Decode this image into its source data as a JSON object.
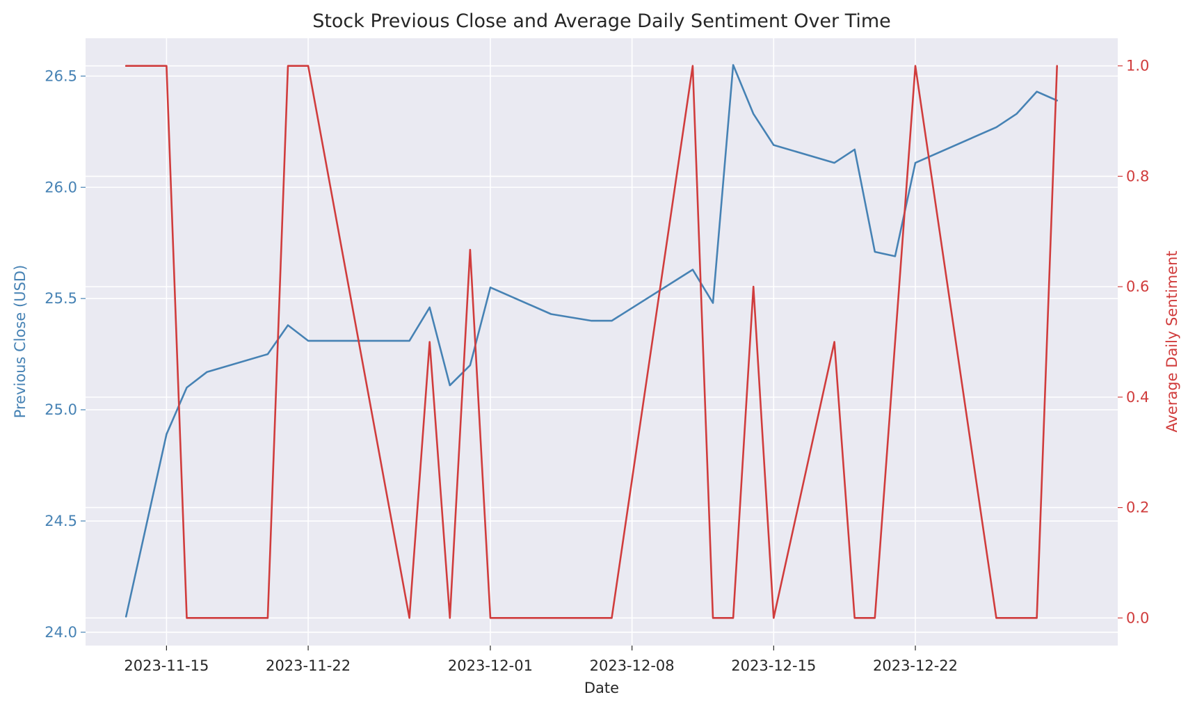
{
  "chart_data": {
    "type": "line",
    "title": "Stock Previous Close and Average Daily Sentiment Over Time",
    "xlabel": "Date",
    "ylabel_left": "Previous Close (USD)",
    "ylabel_right": "Average Daily Sentiment",
    "x_ticks": [
      "2023-11-15",
      "2023-11-22",
      "2023-12-01",
      "2023-12-08",
      "2023-12-15",
      "2023-12-22"
    ],
    "xlim": [
      "2023-11-11",
      "2024-01-01"
    ],
    "y_left_ticks": [
      "24.0",
      "24.5",
      "25.0",
      "25.5",
      "26.0",
      "26.5"
    ],
    "ylim_left": [
      23.94,
      26.67
    ],
    "y_right_ticks": [
      "0.0",
      "0.2",
      "0.4",
      "0.6",
      "0.8",
      "1.0"
    ],
    "ylim_right": [
      -0.05,
      1.05
    ],
    "grid": true,
    "colors": {
      "close": "#4682b4",
      "sentiment": "#d03c3c",
      "background": "#eaeaf2"
    },
    "series": [
      {
        "axis": "left",
        "x": [
          "2023-11-13",
          "2023-11-15",
          "2023-11-16",
          "2023-11-17",
          "2023-11-20",
          "2023-11-21",
          "2023-11-22",
          "2023-11-27",
          "2023-11-28",
          "2023-11-29",
          "2023-11-30",
          "2023-12-01",
          "2023-12-04",
          "2023-12-06",
          "2023-12-07",
          "2023-12-11",
          "2023-12-12",
          "2023-12-13",
          "2023-12-14",
          "2023-12-15",
          "2023-12-18",
          "2023-12-19",
          "2023-12-20",
          "2023-12-21",
          "2023-12-22",
          "2023-12-26",
          "2023-12-27",
          "2023-12-28",
          "2023-12-29"
        ],
        "values": [
          24.07,
          24.89,
          25.1,
          25.17,
          25.25,
          25.38,
          25.31,
          25.31,
          25.46,
          25.11,
          25.2,
          25.55,
          25.43,
          25.4,
          25.4,
          25.63,
          25.48,
          26.55,
          26.33,
          26.19,
          26.11,
          26.17,
          25.71,
          25.69,
          26.11,
          26.27,
          26.33,
          26.43,
          26.39
        ]
      },
      {
        "axis": "right",
        "x": [
          "2023-11-13",
          "2023-11-15",
          "2023-11-16",
          "2023-11-20",
          "2023-11-21",
          "2023-11-22",
          "2023-11-27",
          "2023-11-28",
          "2023-11-29",
          "2023-11-30",
          "2023-12-01",
          "2023-12-07",
          "2023-12-11",
          "2023-12-12",
          "2023-12-13",
          "2023-12-14",
          "2023-12-15",
          "2023-12-18",
          "2023-12-19",
          "2023-12-20",
          "2023-12-22",
          "2023-12-26",
          "2023-12-28",
          "2023-12-29"
        ],
        "values": [
          1.0,
          1.0,
          0.0,
          0.0,
          1.0,
          1.0,
          0.0,
          0.5,
          0.0,
          0.667,
          0.0,
          0.0,
          1.0,
          0.0,
          0.0,
          0.6,
          0.0,
          0.5,
          0.0,
          0.0,
          1.0,
          0.0,
          0.0,
          1.0
        ]
      }
    ]
  }
}
